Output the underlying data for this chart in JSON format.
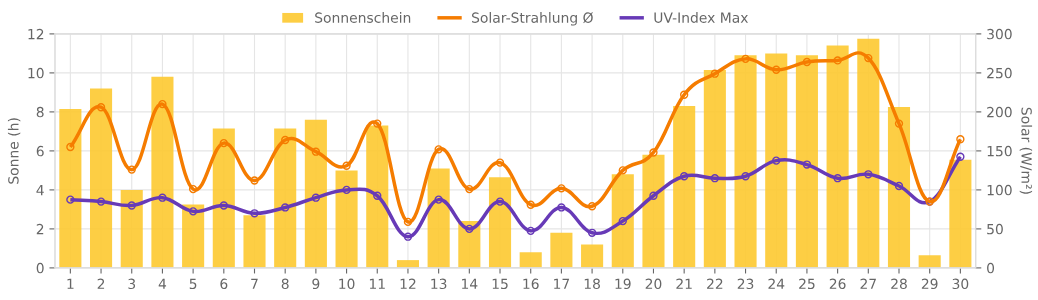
{
  "chart_data": {
    "type": "bar",
    "ylabel": "Sonne (h)",
    "y2label": "Solar (W/m²)",
    "categories": [
      "1",
      "2",
      "3",
      "4",
      "5",
      "6",
      "7",
      "8",
      "9",
      "10",
      "11",
      "12",
      "13",
      "14",
      "15",
      "16",
      "17",
      "18",
      "19",
      "20",
      "21",
      "22",
      "23",
      "24",
      "25",
      "26",
      "27",
      "28",
      "29",
      "30"
    ],
    "series": [
      {
        "name": "Sonnenschein",
        "color": "#fdc930",
        "values": [
          8.15,
          9.2,
          4.0,
          9.8,
          3.25,
          7.15,
          2.7,
          7.15,
          7.6,
          5.0,
          7.3,
          0.4,
          5.1,
          2.4,
          4.65,
          0.8,
          1.8,
          1.2,
          4.8,
          5.8,
          8.3,
          10.15,
          10.9,
          11.0,
          10.9,
          11.4,
          11.75,
          8.25,
          0.65,
          5.55
        ]
      },
      {
        "name": "Solar-Strahlung Ø",
        "type": "line",
        "axis": "y2",
        "color": "#f57c00",
        "values": [
          155,
          206,
          126,
          210,
          101,
          160,
          112,
          164,
          149,
          131,
          185,
          59,
          152,
          101,
          135,
          81,
          102,
          79,
          125,
          148,
          222,
          249,
          268,
          254,
          264,
          266,
          269,
          185,
          85,
          165
        ]
      },
      {
        "name": "UV-Index Max",
        "type": "line",
        "color": "#673ab7",
        "values": [
          3.5,
          3.4,
          3.2,
          3.6,
          2.9,
          3.2,
          2.8,
          3.1,
          3.6,
          4.0,
          3.7,
          1.6,
          3.5,
          2.0,
          3.4,
          1.9,
          3.1,
          1.8,
          2.4,
          3.7,
          4.7,
          4.6,
          4.7,
          5.5,
          5.3,
          4.6,
          4.8,
          4.2,
          3.4,
          5.7
        ]
      }
    ],
    "ylim": [
      0,
      12
    ],
    "yticks": [
      0,
      2,
      4,
      6,
      8,
      10,
      12
    ],
    "y2lim": [
      0,
      300
    ],
    "y2ticks": [
      0,
      50,
      100,
      150,
      200,
      250,
      300
    ],
    "grid": true,
    "legend": "top",
    "marker": "circle",
    "line_style": "solid"
  }
}
